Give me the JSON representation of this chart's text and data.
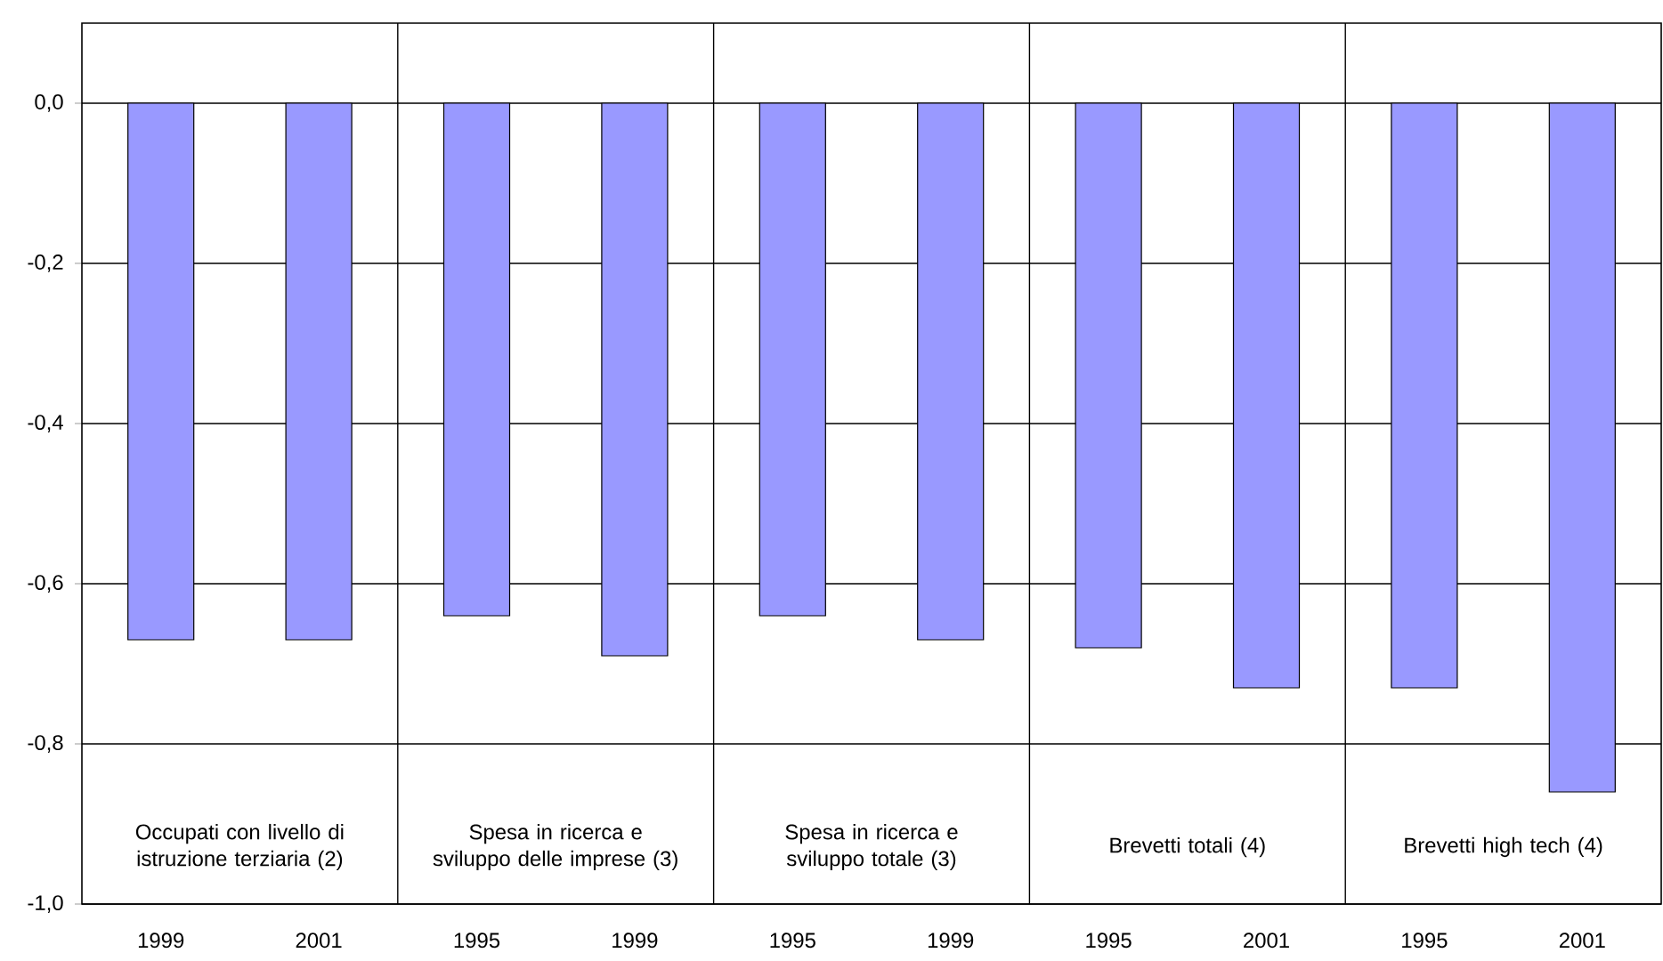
{
  "chart_data": {
    "type": "bar",
    "categories": [
      "1999",
      "2001",
      "1995",
      "1999",
      "1995",
      "1999",
      "1995",
      "2001",
      "1995",
      "2001"
    ],
    "values": [
      -0.67,
      -0.67,
      -0.64,
      -0.69,
      -0.64,
      -0.67,
      -0.68,
      -0.73,
      -0.73,
      -0.86
    ],
    "color": "#9999ff",
    "ylim": [
      -1.0,
      0.1
    ],
    "yticks": [
      {
        "value": -1.0,
        "label": "-1,0"
      },
      {
        "value": -0.8,
        "label": "-0,8"
      },
      {
        "value": -0.6,
        "label": "-0,6"
      },
      {
        "value": -0.4,
        "label": "-0,4"
      },
      {
        "value": -0.2,
        "label": "-0,2"
      },
      {
        "value": 0.0,
        "label": "0,0"
      }
    ],
    "grid": "y",
    "annotations": [
      "Occupati con livello di istruzione terziaria (2)",
      "Spesa in ricerca e sviluppo delle imprese (3)",
      "Spesa in ricerca e sviluppo totale (3)",
      "Brevetti totali (4)",
      "Brevetti high tech (4)"
    ]
  }
}
